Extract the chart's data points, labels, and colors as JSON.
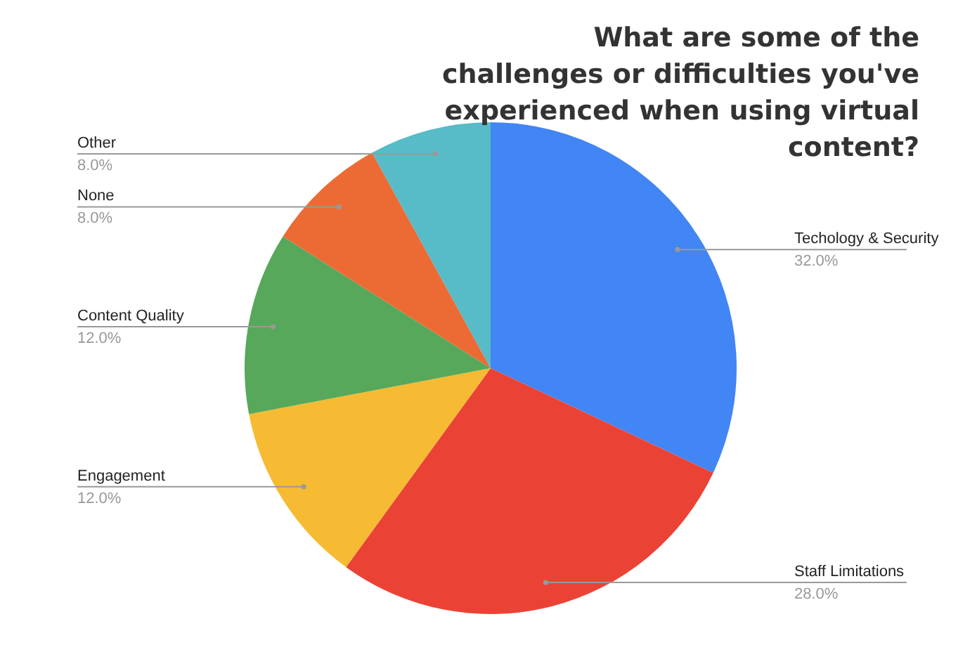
{
  "chart_data": {
    "type": "pie",
    "title": "What are some of the challenges or difficulties you've experienced when using virtual content?",
    "categories": [
      "Techology & Security",
      "Staff Limitations",
      "Engagement",
      "Content Quality",
      "None",
      "Other"
    ],
    "values": [
      32,
      28,
      12,
      12,
      8,
      8
    ],
    "value_labels": [
      "32.0%",
      "28.0%",
      "12.0%",
      "12.0%",
      "8.0%",
      "8.0%"
    ],
    "colors": [
      "#4285f4",
      "#ea4335",
      "#f6bb33",
      "#57a85a",
      "#ec6b35",
      "#57bbc8"
    ],
    "legend": false
  }
}
